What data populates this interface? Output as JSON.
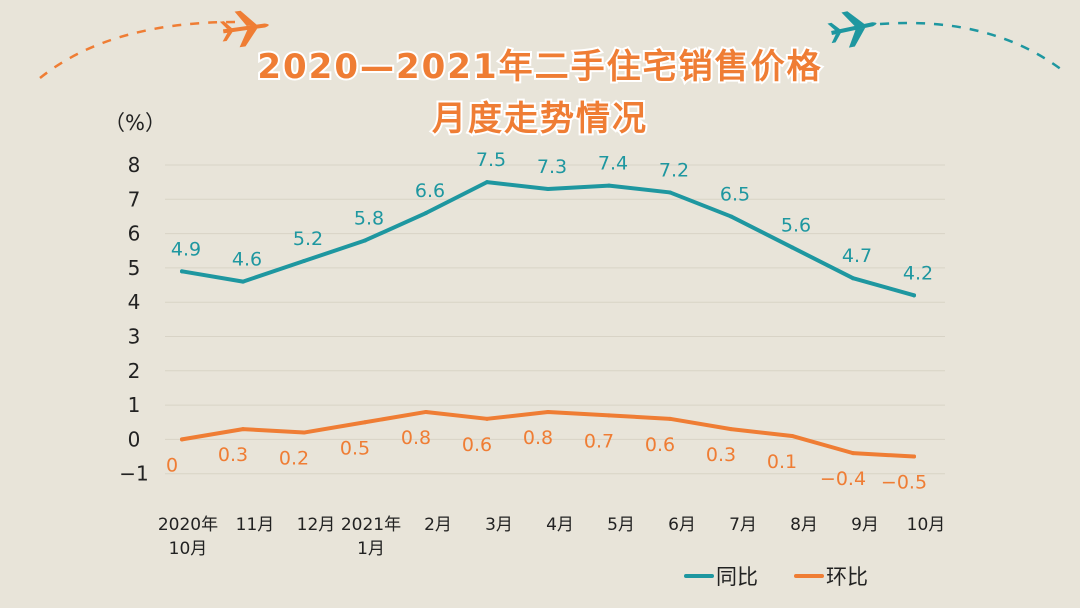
{
  "title": {
    "line1": "2020—2021年二手住宅销售价格",
    "line2": "月度走势情况"
  },
  "colors": {
    "background": "#e8e4d9",
    "title": "#ef7d34",
    "series_yoy": "#1e97a0",
    "series_mom": "#ef7d34",
    "plane_left": "#ef7d34",
    "plane_right": "#1e97a0"
  },
  "chart_data": {
    "type": "line",
    "ylabel": "（%）",
    "ylim": [
      -1,
      8
    ],
    "yticks": [
      "8",
      "7",
      "6",
      "5",
      "4",
      "3",
      "2",
      "1",
      "0",
      "−1"
    ],
    "ytick_values": [
      8,
      7,
      6,
      5,
      4,
      3,
      2,
      1,
      0,
      -1
    ],
    "categories": [
      [
        "2020年",
        "10月"
      ],
      [
        "11月"
      ],
      [
        "12月"
      ],
      [
        "2021年",
        "1月"
      ],
      [
        "2月"
      ],
      [
        "3月"
      ],
      [
        "4月"
      ],
      [
        "5月"
      ],
      [
        "6月"
      ],
      [
        "7月"
      ],
      [
        "8月"
      ],
      [
        "9月"
      ],
      [
        "10月"
      ]
    ],
    "series": [
      {
        "name": "同比",
        "color": "#1e97a0",
        "values": [
          4.9,
          4.6,
          5.2,
          5.8,
          6.6,
          7.5,
          7.3,
          7.4,
          7.2,
          6.5,
          5.6,
          4.7,
          4.2
        ],
        "labels": [
          "4.9",
          "4.6",
          "5.2",
          "5.8",
          "6.6",
          "7.5",
          "7.3",
          "7.4",
          "7.2",
          "6.5",
          "5.6",
          "4.7",
          "4.2"
        ]
      },
      {
        "name": "环比",
        "color": "#ef7d34",
        "values": [
          0,
          0.3,
          0.2,
          0.5,
          0.8,
          0.6,
          0.8,
          0.7,
          0.6,
          0.3,
          0.1,
          -0.4,
          -0.5
        ],
        "labels": [
          "0",
          "0.3",
          "0.2",
          "0.5",
          "0.8",
          "0.6",
          "0.8",
          "0.7",
          "0.6",
          "0.3",
          "0.1",
          "−0.4",
          "−0.5"
        ]
      }
    ],
    "grid": true,
    "legend": "bottom-right"
  }
}
